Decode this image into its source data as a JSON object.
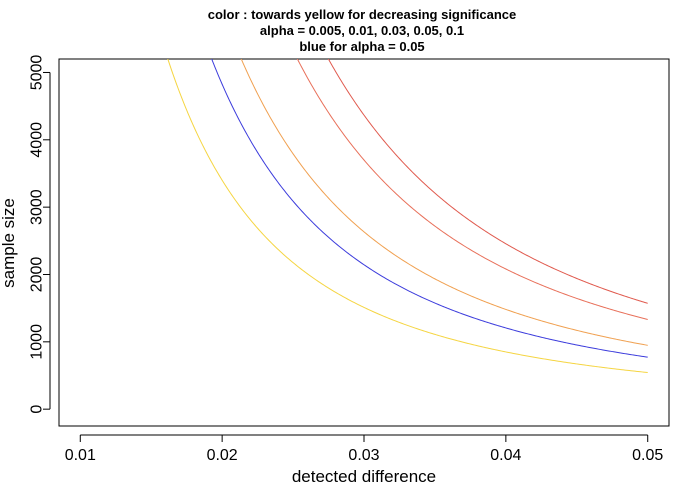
{
  "chart_data": {
    "type": "line",
    "title_lines": [
      "color : towards yellow for decreasing significance",
      "alpha =  0.005, 0.01, 0.03, 0.05, 0.1",
      "blue for alpha =  0.05"
    ],
    "xlabel": "detected difference",
    "ylabel": "sample size",
    "xlim": [
      0.0085,
      0.0515
    ],
    "ylim": [
      -250,
      5200
    ],
    "xticks": [
      0.01,
      0.02,
      0.03,
      0.04,
      0.05
    ],
    "xtick_labels": [
      "0.01",
      "0.02",
      "0.03",
      "0.04",
      "0.05"
    ],
    "yticks": [
      0,
      1000,
      2000,
      3000,
      4000,
      5000
    ],
    "ytick_labels": [
      "0",
      "1000",
      "2000",
      "3000",
      "4000",
      "5000"
    ],
    "grid": false,
    "x_domain": [
      0.01,
      0.05
    ],
    "series": [
      {
        "alpha": 0.005,
        "color": "#e05a4e",
        "k": 3.93,
        "x_end": 0.05,
        "y_end": 1572
      },
      {
        "alpha": 0.01,
        "color": "#e8705a",
        "k": 3.33,
        "x_end": 0.05,
        "y_end": 1332
      },
      {
        "alpha": 0.03,
        "color": "#f0a050",
        "k": 2.37,
        "x_end": 0.05,
        "y_end": 948
      },
      {
        "alpha": 0.05,
        "color": "#3c3cdc",
        "k": 1.93,
        "x_end": 0.05,
        "y_end": 772
      },
      {
        "alpha": 0.1,
        "color": "#f5d542",
        "k": 1.36,
        "x_end": 0.05,
        "y_end": 544
      }
    ]
  }
}
